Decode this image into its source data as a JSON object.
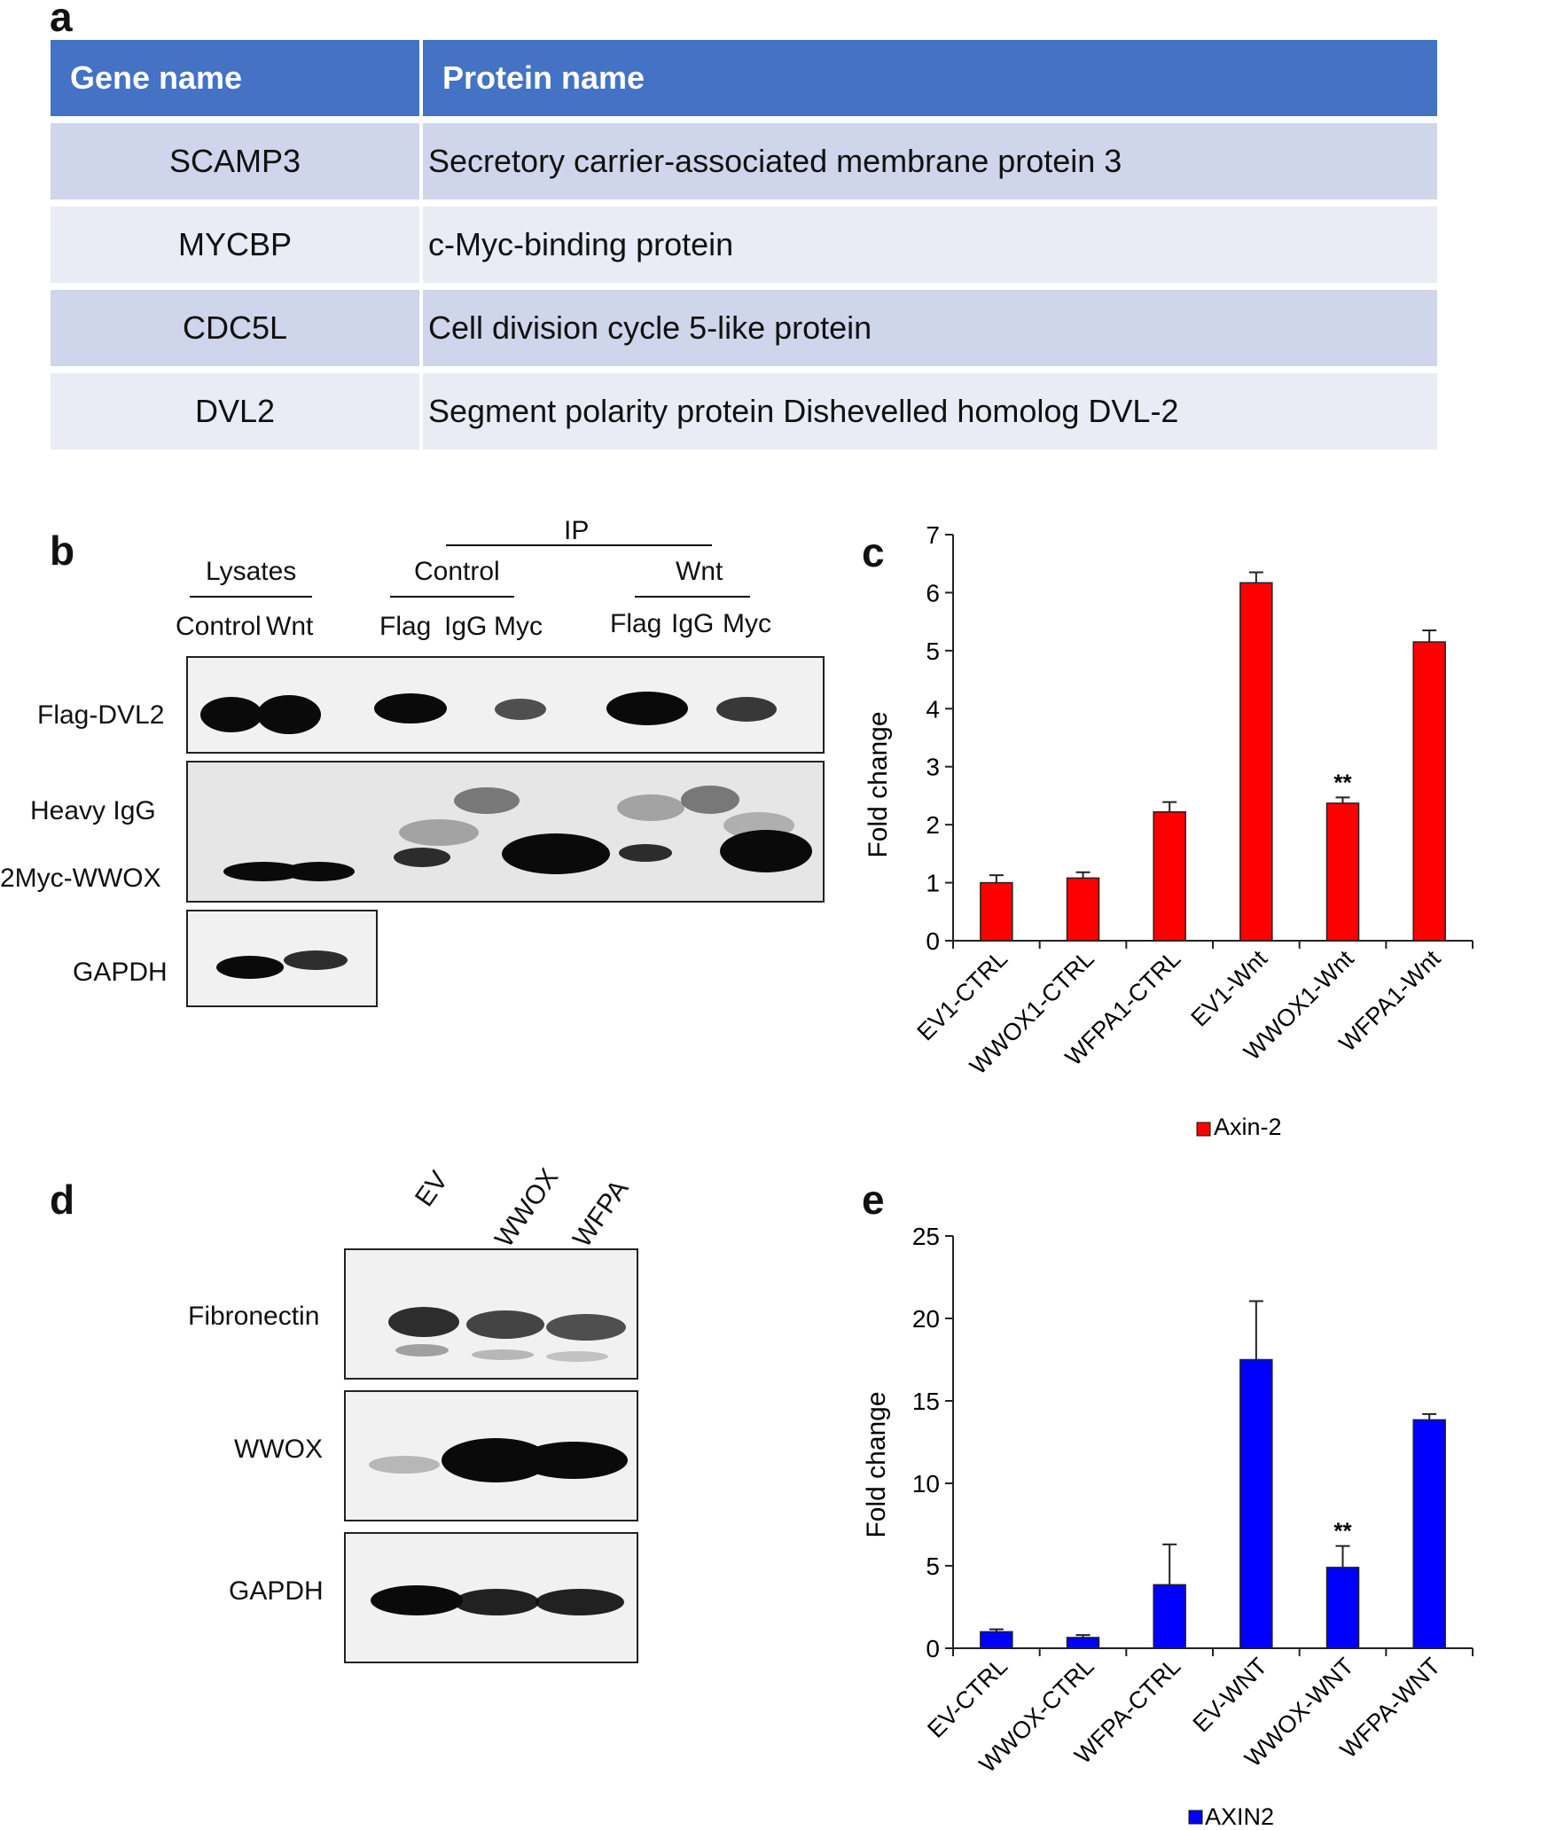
{
  "panels": {
    "a": "a",
    "b": "b",
    "c": "c",
    "d": "d",
    "e": "e"
  },
  "table": {
    "headers": [
      "Gene name",
      "Protein name"
    ],
    "rows": [
      [
        "SCAMP3",
        "Secretory carrier-associated membrane protein 3"
      ],
      [
        "MYCBP",
        "c-Myc-binding protein"
      ],
      [
        "CDC5L",
        "Cell division cycle 5-like protein"
      ],
      [
        "DVL2",
        "Segment polarity protein Dishevelled homolog DVL-2"
      ]
    ]
  },
  "blot_b": {
    "ip": "IP",
    "lysates": "Lysates",
    "control_group": "Control",
    "wnt_group": "Wnt",
    "lys_lanes": [
      "Control",
      "Wnt"
    ],
    "ip_lanes": [
      "Flag",
      "IgG",
      "Myc"
    ],
    "rows": [
      "Flag-DVL2",
      "Heavy  IgG",
      "2Myc-WWOX",
      "GAPDH"
    ]
  },
  "blot_d": {
    "lanes": [
      "EV",
      "WWOX",
      "WFPA"
    ],
    "rows": [
      "Fibronectin",
      "WWOX",
      "GAPDH"
    ]
  },
  "chart_data": [
    {
      "panel": "c",
      "type": "bar",
      "categories": [
        "EV1-CTRL",
        "WWOX1-CTRL",
        "WFPA1-CTRL",
        "EV1-Wnt",
        "WWOX1-Wnt",
        "WFPA1-Wnt"
      ],
      "series": [
        {
          "name": "Axin-2",
          "values": [
            1.0,
            1.08,
            2.22,
            6.17,
            2.37,
            5.15
          ],
          "errors": [
            0.13,
            0.1,
            0.17,
            0.18,
            0.1,
            0.2
          ],
          "color": "#ff0000"
        }
      ],
      "annotations": [
        {
          "category": "WWOX1-Wnt",
          "text": "**"
        }
      ],
      "ylabel": "Fold change",
      "ylim": [
        0,
        7
      ],
      "yticks": [
        0,
        1,
        2,
        3,
        4,
        5,
        6,
        7
      ],
      "legend": "bottom"
    },
    {
      "panel": "e",
      "type": "bar",
      "categories": [
        "EV-CTRL",
        "WWOX-CTRL",
        "WFPA-CTRL",
        "EV-WNT",
        "WWOX-WNT",
        "WFPA-WNT"
      ],
      "series": [
        {
          "name": "AXIN2",
          "values": [
            1.0,
            0.65,
            3.85,
            17.5,
            4.9,
            13.85
          ],
          "errors": [
            0.15,
            0.15,
            2.45,
            3.55,
            1.3,
            0.35
          ],
          "color": "#0000ff"
        }
      ],
      "annotations": [
        {
          "category": "WWOX-WNT",
          "text": "**"
        }
      ],
      "ylabel": "Fold change",
      "ylim": [
        0,
        25
      ],
      "yticks": [
        0,
        5,
        10,
        15,
        20,
        25
      ],
      "legend": "bottom"
    }
  ]
}
